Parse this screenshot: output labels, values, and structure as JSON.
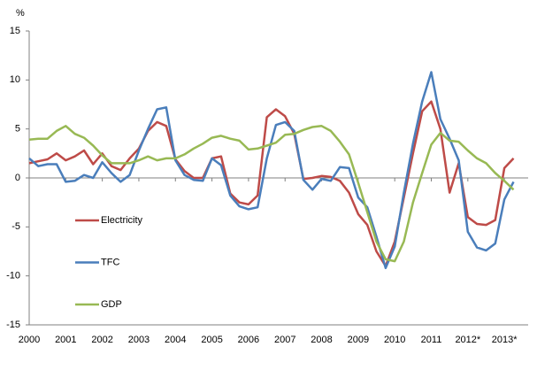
{
  "chart_data": {
    "type": "line",
    "y_label": "%",
    "x": [
      2000,
      2000.25,
      2000.5,
      2000.75,
      2001,
      2001.25,
      2001.5,
      2001.75,
      2002,
      2002.25,
      2002.5,
      2002.75,
      2003,
      2003.25,
      2003.5,
      2003.75,
      2004,
      2004.25,
      2004.5,
      2004.75,
      2005,
      2005.25,
      2005.5,
      2005.75,
      2006,
      2006.25,
      2006.5,
      2006.75,
      2007,
      2007.25,
      2007.5,
      2007.75,
      2008,
      2008.25,
      2008.5,
      2008.75,
      2009,
      2009.25,
      2009.5,
      2009.75,
      2010,
      2010.25,
      2010.5,
      2010.75,
      2011,
      2011.25,
      2011.5,
      2011.75,
      2012,
      2012.25,
      2012.5,
      2012.75,
      2013,
      2013.25
    ],
    "series": [
      {
        "name": "Electricity",
        "color": "#be4b48",
        "values": [
          1.5,
          1.7,
          1.9,
          2.5,
          1.8,
          2.2,
          2.8,
          1.4,
          2.5,
          1.2,
          0.8,
          2.0,
          3.0,
          4.8,
          5.7,
          5.3,
          1.9,
          0.7,
          0.0,
          0.0,
          2.0,
          2.2,
          -1.6,
          -2.5,
          -2.7,
          -1.8,
          6.2,
          7.0,
          6.3,
          4.5,
          -0.1,
          0.0,
          0.2,
          0.1,
          -0.3,
          -1.5,
          -3.7,
          -4.8,
          -7.5,
          -9.0,
          -6.5,
          -2.0,
          2.5,
          6.8,
          7.8,
          5.0,
          -1.5,
          1.5,
          -4.0,
          -4.7,
          -4.8,
          -4.3,
          1.0,
          2.0
        ]
      },
      {
        "name": "TFC",
        "color": "#4a7ebb",
        "values": [
          2.0,
          1.2,
          1.4,
          1.4,
          -0.4,
          -0.3,
          0.3,
          0.0,
          1.6,
          0.5,
          -0.4,
          0.3,
          2.8,
          5.0,
          7.0,
          7.2,
          1.8,
          0.3,
          -0.2,
          -0.3,
          2.0,
          1.3,
          -1.8,
          -2.9,
          -3.2,
          -3.0,
          2.0,
          5.4,
          5.7,
          4.8,
          -0.2,
          -1.2,
          -0.1,
          -0.3,
          1.1,
          1.0,
          -2.0,
          -3.0,
          -6.0,
          -9.2,
          -7.0,
          -1.5,
          3.5,
          7.8,
          10.8,
          6.0,
          4.0,
          1.8,
          -5.5,
          -7.1,
          -7.4,
          -6.7,
          -2.2,
          -0.4
        ]
      },
      {
        "name": "GDP",
        "color": "#98b954",
        "values": [
          3.9,
          4.0,
          4.0,
          4.8,
          5.3,
          4.5,
          4.1,
          3.3,
          2.3,
          1.5,
          1.5,
          1.5,
          1.8,
          2.2,
          1.8,
          2.0,
          2.0,
          2.4,
          3.0,
          3.5,
          4.1,
          4.3,
          4.0,
          3.8,
          2.9,
          3.0,
          3.3,
          3.6,
          4.4,
          4.5,
          4.9,
          5.2,
          5.3,
          4.8,
          3.7,
          2.4,
          -0.5,
          -3.5,
          -6.5,
          -8.3,
          -8.5,
          -6.5,
          -2.5,
          0.5,
          3.4,
          4.6,
          3.8,
          3.7,
          2.8,
          2.0,
          1.5,
          0.5,
          -0.3,
          -1.2
        ]
      }
    ],
    "xlim": [
      2000,
      2013.65
    ],
    "xticks": [
      2000,
      2001,
      2002,
      2003,
      2004,
      2005,
      2006,
      2007,
      2008,
      2009,
      2010,
      2011,
      {
        "value": 2012,
        "label": "2012*"
      },
      {
        "value": 2013,
        "label": "2013*"
      }
    ],
    "ylim": [
      -15,
      15
    ],
    "yticks": [
      -15,
      -10,
      -5,
      0,
      5,
      10,
      15
    ],
    "grid": false,
    "legend": "left"
  }
}
